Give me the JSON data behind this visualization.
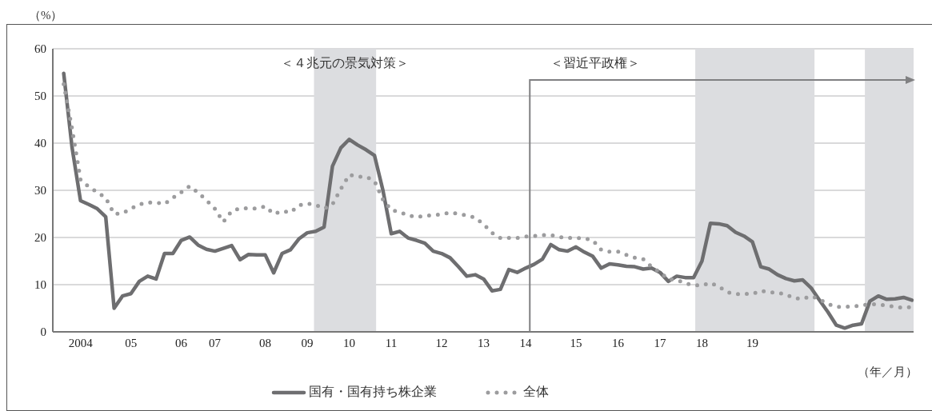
{
  "chart_data": {
    "type": "line",
    "ylabel": "（%）",
    "xlabel": "（年／月）",
    "categories": [
      null,
      null,
      "2004",
      null,
      null,
      null,
      null,
      null,
      "05",
      null,
      null,
      null,
      null,
      null,
      "06",
      null,
      null,
      null,
      "07",
      null,
      null,
      null,
      null,
      null,
      "08",
      null,
      null,
      null,
      null,
      "09",
      null,
      null,
      null,
      null,
      "10",
      null,
      null,
      null,
      null,
      "11",
      null,
      null,
      null,
      null,
      null,
      "12",
      null,
      null,
      null,
      null,
      "13",
      null,
      null,
      null,
      null,
      "14",
      null,
      null,
      null,
      null,
      null,
      "15",
      null,
      null,
      null,
      null,
      "16",
      null,
      null,
      null,
      null,
      "17",
      null,
      null,
      null,
      null,
      "18",
      null,
      null,
      null,
      null,
      null,
      "19",
      null,
      null,
      null,
      null,
      null,
      null,
      null,
      null,
      null,
      null,
      null,
      null,
      null,
      null,
      null,
      null,
      null,
      null,
      null
    ],
    "series": [
      {
        "name": "国有・国有持ち株企業",
        "color": "#6e6e70",
        "line_style": "solid",
        "values": [
          54.8,
          39,
          27.8,
          27,
          26.1,
          24.4,
          5,
          7.6,
          8.1,
          10.7,
          11.8,
          11.2,
          16.6,
          16.6,
          19.4,
          20.1,
          18.4,
          17.5,
          17.1,
          17.7,
          18.3,
          15.3,
          16.4,
          16.3,
          16.3,
          12.5,
          16.6,
          17.4,
          19.7,
          21,
          21.3,
          22.2,
          35.1,
          39,
          40.8,
          39.6,
          38.6,
          37.4,
          30.1,
          20.8,
          21.3,
          19.9,
          19.4,
          18.8,
          17.1,
          16.6,
          15.7,
          13.8,
          11.8,
          12.1,
          11.2,
          8.7,
          9,
          13.2,
          12.6,
          13.5,
          14.3,
          15.4,
          18.5,
          17.4,
          17.1,
          18,
          16.9,
          16,
          13.5,
          14.4,
          14.2,
          13.9,
          13.8,
          13.3,
          13.5,
          12.6,
          10.7,
          11.8,
          11.5,
          11.5,
          15,
          23,
          22.9,
          22.5,
          21.1,
          20.3,
          19.1,
          13.8,
          13.3,
          12.1,
          11.3,
          10.8,
          11,
          9.3,
          6.7,
          4.2,
          1.4,
          0.8,
          1.4,
          1.7,
          6.5,
          7.6,
          6.9,
          7,
          7.3,
          6.7
        ]
      },
      {
        "name": "全体",
        "color": "#9c9c9e",
        "line_style": "dotted",
        "values": [
          52.5,
          43,
          32.3,
          30.7,
          29.6,
          28.4,
          25,
          25.1,
          26.1,
          27,
          27.4,
          27.4,
          27.1,
          28.4,
          29.6,
          30.9,
          29.5,
          27.9,
          26.1,
          23.3,
          25.6,
          26.2,
          26.2,
          26.1,
          26.6,
          25,
          25.6,
          25.3,
          26.8,
          27.2,
          26.9,
          26.1,
          27,
          30.3,
          33.3,
          32.9,
          32.9,
          32,
          28.1,
          25.8,
          25.4,
          24.7,
          24.3,
          24.6,
          24.7,
          24.9,
          25.3,
          25,
          24.7,
          24.2,
          22.8,
          21,
          19.9,
          19.9,
          19.9,
          20.2,
          20.3,
          20.5,
          20.5,
          20.1,
          19.9,
          19.9,
          19.8,
          19.4,
          17.4,
          17,
          17,
          16.3,
          15.7,
          15.4,
          13.8,
          12.6,
          11.2,
          11,
          10.3,
          9.9,
          9.8,
          10.4,
          9.6,
          8.4,
          8,
          8.1,
          8,
          8.7,
          8.4,
          8.3,
          7.9,
          7.1,
          7,
          7.6,
          6.9,
          5.9,
          5.3,
          5.3,
          5.4,
          5.6,
          5.9,
          5.8,
          5.6,
          5.3,
          5.1,
          5.3
        ]
      }
    ],
    "ylim": [
      0,
      60
    ],
    "yticks": [
      0,
      10,
      20,
      30,
      40,
      50,
      60
    ],
    "grid": "y",
    "legend": "bottom",
    "annotations": [
      "＜４兆元の景気対策＞",
      "＜習近平政権＞"
    ]
  }
}
